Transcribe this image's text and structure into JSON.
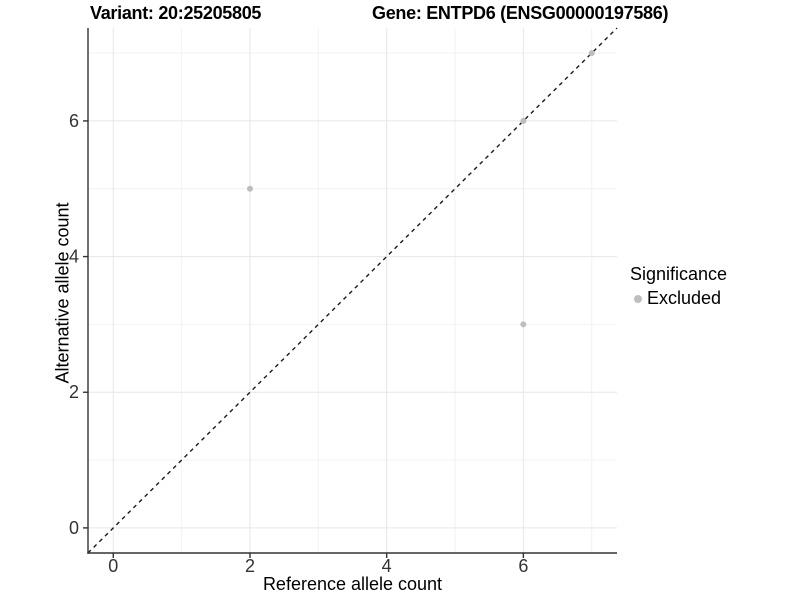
{
  "titles": {
    "left": "Variant: 20:25205805",
    "right": "Gene: ENTPD6 (ENSG00000197586)"
  },
  "chart_data": {
    "type": "scatter",
    "xlabel": "Reference allele count",
    "ylabel": "Alternative allele count",
    "xlim": [
      -0.37,
      7.37
    ],
    "ylim": [
      -0.37,
      7.37
    ],
    "xticks": [
      0,
      2,
      4,
      6
    ],
    "yticks": [
      0,
      2,
      4,
      6
    ],
    "minor_xticks": [
      1,
      3,
      5,
      7
    ],
    "minor_yticks": [
      1,
      3,
      5,
      7
    ],
    "grid": "major+minor, light grey on white",
    "identity_line": {
      "slope": 1,
      "intercept": 0,
      "style": "dashed",
      "color": "#1a1a1a"
    },
    "series": [
      {
        "name": "Excluded",
        "color": "#bebebe",
        "points": [
          [
            2,
            5
          ],
          [
            6,
            3
          ],
          [
            6,
            6
          ],
          [
            7,
            7
          ]
        ]
      }
    ],
    "legend": {
      "title": "Significance",
      "position": "right",
      "items": [
        {
          "label": "Excluded",
          "color": "#bebebe"
        }
      ]
    },
    "colors": {
      "axis_line": "#333333",
      "tick_label": "#333333",
      "grid_major": "#e6e6e6",
      "grid_minor": "#f2f2f2",
      "background": "#ffffff"
    }
  }
}
